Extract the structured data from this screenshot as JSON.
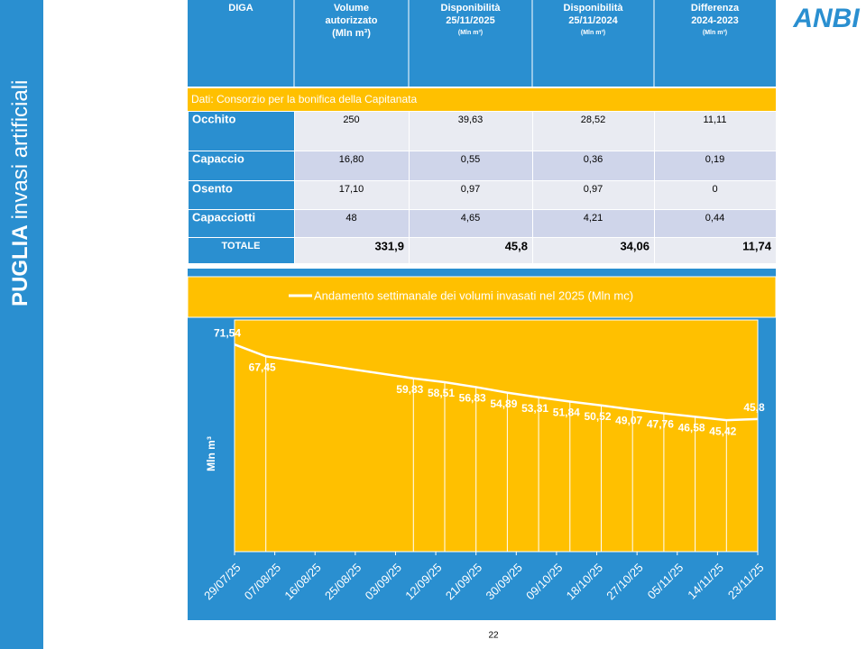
{
  "sidebar": {
    "bold": "PUGLIA",
    "text": "invasi artificiali"
  },
  "logo": "ANBI",
  "table": {
    "header": [
      [
        "DIGA"
      ],
      [
        "Volume",
        "autorizzato",
        "(Mln m³)"
      ],
      [
        "Disponibilità",
        "25/11/2025",
        "(Mln m³)"
      ],
      [
        "Disponibilità",
        "25/11/2024",
        "(Mln m³)"
      ],
      [
        "Differenza",
        "2024-2023",
        "(Mln m³)"
      ]
    ],
    "source": "Dati: Consorzio per la bonifica della Capitanata",
    "rows": [
      [
        "Occhito",
        "250",
        "39,63",
        "28,52",
        "11,11"
      ],
      [
        "Capaccio",
        "16,80",
        "0,55",
        "0,36",
        "0,19"
      ],
      [
        "Osento",
        "17,10",
        "0,97",
        "0,97",
        "0"
      ],
      [
        "Capacciotti",
        "48",
        "4,65",
        "4,21",
        "0,44"
      ]
    ],
    "total": [
      "TOTALE",
      "331,9",
      "45,8",
      "34,06",
      "11,74"
    ]
  },
  "chart_data": {
    "type": "line",
    "y_label": "Mln m³",
    "background": "#ffc000",
    "droplines": true,
    "legend": "top",
    "x": [
      "29/07/25",
      "05/08/25",
      "07/09/25",
      "14/09/25",
      "21/09/25",
      "28/09/25",
      "05/10/25",
      "12/10/25",
      "19/10/25",
      "26/10/25",
      "02/11/25",
      "09/11/25",
      "16/11/25",
      "23/11/25"
    ],
    "xlim": [
      "29/07/25",
      "23/11/25"
    ],
    "xticks": [
      "29/07/25",
      "07/08/25",
      "16/08/25",
      "25/08/25",
      "03/09/25",
      "12/09/25",
      "21/09/25",
      "30/09/25",
      "09/10/25",
      "18/10/25",
      "27/10/25",
      "05/11/25",
      "14/11/25",
      "23/11/25"
    ],
    "ylim": [
      0,
      80
    ],
    "series": [
      {
        "name": "Andamento settimanale dei volumi invasati nel 2025 (Mln mc)",
        "color": "#ffffff",
        "values": [
          71.54,
          67.45,
          59.83,
          58.51,
          56.83,
          54.89,
          53.31,
          51.84,
          50.52,
          49.07,
          47.76,
          46.58,
          45.42,
          45.8
        ],
        "value_labels": [
          "71,54",
          "67,45",
          "59,83",
          "58,51",
          "56,83",
          "54,89",
          "53,31",
          "51,84",
          "50,52",
          "49,07",
          "47,76",
          "46,58",
          "45,42",
          "45,8"
        ]
      }
    ]
  },
  "page_number": "22"
}
